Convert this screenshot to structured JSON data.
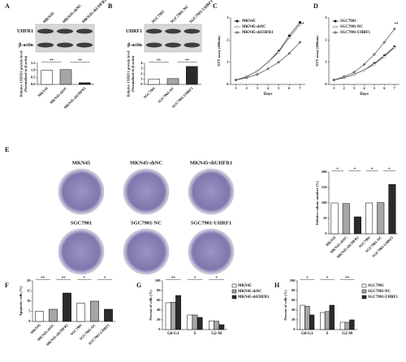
{
  "chart_data": [
    {
      "label": "A",
      "type": "bar",
      "blot": {
        "rows": [
          "UHFR1",
          "β-actin"
        ],
        "lanes": [
          "MKN45",
          "MKN45-shNC",
          "MKN45-shUHFR1"
        ]
      },
      "categories": [
        "MKN45",
        "MKN45-shNC",
        "MKN45-shUHFR1"
      ],
      "values": [
        1.0,
        1.05,
        0.12
      ],
      "colors": [
        "#ffffff",
        "#a6a6a6",
        "#2b2b2b"
      ],
      "ylim": [
        0,
        1.5
      ],
      "yticks": [
        {
          "value": 0,
          "label": "0.0"
        },
        {
          "value": 0.5,
          "label": "0.5"
        },
        {
          "value": 1,
          "label": "1.0"
        },
        {
          "value": 1.5,
          "label": "1.5"
        }
      ],
      "ylabel": [
        "Relative UHFR1 protein level",
        "(Normalized to β-actin)"
      ],
      "annotations": [
        "**",
        "**"
      ]
    },
    {
      "label": "B",
      "type": "bar",
      "blot": {
        "rows": [
          "UHRF1",
          "β-actin"
        ],
        "lanes": [
          "SGC7901",
          "SGC7901-NC",
          "SGC7901-UHRF1"
        ]
      },
      "categories": [
        "SGC7901",
        "SGC7901-NC",
        "SGC7901-UHRF1"
      ],
      "values": [
        1.0,
        1.1,
        3.4
      ],
      "colors": [
        "#ffffff",
        "#a6a6a6",
        "#2b2b2b"
      ],
      "ylim": [
        0,
        4
      ],
      "yticks": [
        0,
        1,
        2,
        3,
        4
      ],
      "ylabel": [
        "Relative UHRF1 protein level",
        "(Normalized to β-actin)"
      ],
      "annotations": [
        "**",
        "**"
      ]
    },
    {
      "label": "C",
      "type": "line",
      "x": [
        1,
        2,
        3,
        4,
        5,
        6,
        7
      ],
      "xlim": [
        0.5,
        7.5
      ],
      "xticks": [
        1,
        2,
        3,
        4,
        5,
        6,
        7
      ],
      "ylim": [
        0,
        3
      ],
      "yticks": [
        0,
        1,
        2,
        3
      ],
      "xlabel": "Days",
      "ylabel": [
        "XTT assay (466nm)"
      ],
      "series": [
        {
          "name": "MKN45",
          "color": "#000000",
          "marker_fill": "#000000",
          "values": [
            0.2,
            0.35,
            0.6,
            1.0,
            1.5,
            2.2,
            2.8
          ]
        },
        {
          "name": "MKN45-shNC",
          "color": "#555555",
          "marker_fill": "#ffffff",
          "values": [
            0.2,
            0.35,
            0.6,
            1.0,
            1.45,
            2.1,
            2.7
          ]
        },
        {
          "name": "MKN45-shUHFR1",
          "color": "#333333",
          "marker_fill": "#888888",
          "values": [
            0.2,
            0.3,
            0.45,
            0.7,
            1.0,
            1.4,
            1.9
          ]
        }
      ],
      "annotations": [
        "**"
      ]
    },
    {
      "label": "D",
      "type": "line",
      "x": [
        1,
        2,
        3,
        4,
        5,
        6,
        7
      ],
      "xlim": [
        0.5,
        7.5
      ],
      "xticks": [
        1,
        2,
        3,
        4,
        5,
        6,
        7
      ],
      "ylim": [
        0,
        3
      ],
      "yticks": [
        0,
        1,
        2,
        3
      ],
      "xlabel": "Days",
      "ylabel": [
        "XTT assay (466nm)"
      ],
      "series": [
        {
          "name": "SGC7901",
          "color": "#000000",
          "marker_fill": "#000000",
          "values": [
            0.2,
            0.3,
            0.45,
            0.65,
            0.95,
            1.3,
            1.7
          ]
        },
        {
          "name": "SGC7901-NC",
          "color": "#555555",
          "marker_fill": "#ffffff",
          "values": [
            0.2,
            0.3,
            0.45,
            0.65,
            0.9,
            1.25,
            1.65
          ]
        },
        {
          "name": "SGC7901-UHRF1",
          "color": "#333333",
          "marker_fill": "#888888",
          "values": [
            0.2,
            0.35,
            0.55,
            0.9,
            1.35,
            1.9,
            2.5
          ]
        }
      ],
      "annotations": [
        "**"
      ]
    },
    {
      "label": "E",
      "type": "bar",
      "photos": [
        "MKN45",
        "MKN45-shNC",
        "MKN45-shUHFR1",
        "SGC7901",
        "SGC7901-NC",
        "SGC7901-UHRF1"
      ],
      "categories": [
        "MKN45",
        "MKN45-shNC",
        "MKN45-shUHFR1",
        "SGC7901",
        "SGC7901-NC",
        "SGC7901-UHRF1"
      ],
      "values": [
        100,
        98,
        55,
        100,
        101,
        160
      ],
      "colors": [
        "#ffffff",
        "#a6a6a6",
        "#2b2b2b",
        "#ffffff",
        "#a6a6a6",
        "#2b2b2b"
      ],
      "ylim": [
        0,
        200
      ],
      "yticks": [
        0,
        50,
        100,
        150,
        200
      ],
      "ylabel": [
        "Relative colony number (%)"
      ],
      "annotations": [
        "*",
        "*",
        "*",
        "*"
      ]
    },
    {
      "label": "F",
      "type": "bar",
      "categories": [
        "MKN45",
        "MKN45-shNC",
        "MKN45-shUHFR1",
        "SGC7901",
        "SGC7901-NC",
        "SGC7901-UHRF1"
      ],
      "values": [
        5,
        6,
        14,
        9,
        10,
        6
      ],
      "colors": [
        "#ffffff",
        "#a6a6a6",
        "#2b2b2b",
        "#ffffff",
        "#a6a6a6",
        "#2b2b2b"
      ],
      "ylim": [
        0,
        20
      ],
      "yticks": [
        0,
        5,
        10,
        15,
        20
      ],
      "ylabel": [
        "Apoptotic cells (%)"
      ],
      "annotations": [
        "**",
        "**",
        "*",
        "*"
      ]
    },
    {
      "label": "G",
      "type": "grouped_bar",
      "categories": [
        "G0-G1",
        "S",
        "G2-M"
      ],
      "series": [
        {
          "name": "MKN45",
          "color": "#ffffff",
          "values": [
            55,
            30,
            18
          ]
        },
        {
          "name": "MKN45-shNC",
          "color": "#a6a6a6",
          "values": [
            56,
            30,
            17
          ]
        },
        {
          "name": "MKN45-shUHFR1",
          "color": "#2b2b2b",
          "values": [
            70,
            25,
            10
          ]
        }
      ],
      "ylim": [
        0,
        100
      ],
      "yticks": [
        0,
        20,
        40,
        60,
        80,
        100
      ],
      "ylabel": [
        "Percent of cells (%)"
      ],
      "annotations": [
        "**",
        "*",
        "*"
      ]
    },
    {
      "label": "H",
      "type": "grouped_bar",
      "categories": [
        "G0-G1",
        "S",
        "G2-M"
      ],
      "series": [
        {
          "name": "SGC7901",
          "color": "#ffffff",
          "values": [
            50,
            35,
            15
          ]
        },
        {
          "name": "SGC7901-NC",
          "color": "#a6a6a6",
          "values": [
            48,
            37,
            15
          ]
        },
        {
          "name": "SGC7901-UHRF1",
          "color": "#2b2b2b",
          "values": [
            30,
            50,
            20
          ]
        }
      ],
      "ylim": [
        0,
        100
      ],
      "yticks": [
        0,
        20,
        40,
        60,
        80,
        100
      ],
      "ylabel": [
        "Percent of cells (%)"
      ],
      "annotations": [
        "*",
        "*",
        "**"
      ]
    }
  ]
}
